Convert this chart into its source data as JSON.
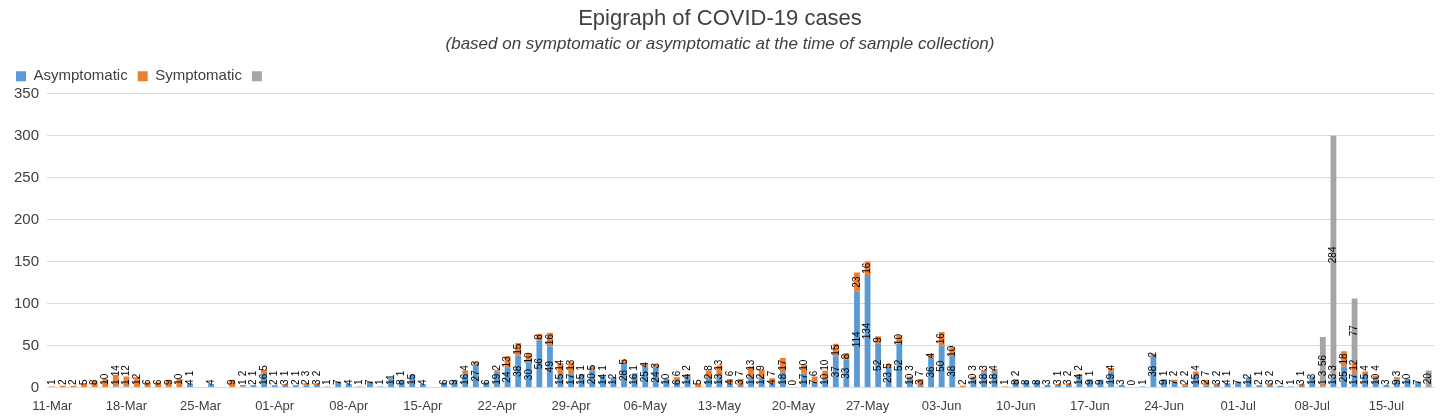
{
  "chart_data": {
    "type": "bar",
    "title": "Epigraph of COVID-19 cases",
    "subtitle": "(based on symptomatic or asymptomatic at the time of sample collection)",
    "categories": [
      "11-Mar",
      null,
      null,
      null,
      null,
      null,
      null,
      "18-Mar",
      null,
      null,
      null,
      null,
      null,
      null,
      "25-Mar",
      null,
      null,
      null,
      null,
      null,
      null,
      "01-Apr",
      null,
      null,
      null,
      null,
      null,
      null,
      "08-Apr",
      null,
      null,
      null,
      null,
      null,
      null,
      "15-Apr",
      null,
      null,
      null,
      null,
      null,
      null,
      "22-Apr",
      null,
      null,
      null,
      null,
      null,
      null,
      "29-Apr",
      null,
      null,
      null,
      null,
      null,
      null,
      "06-May",
      null,
      null,
      null,
      null,
      null,
      null,
      "13-May",
      null,
      null,
      null,
      null,
      null,
      null,
      "20-May",
      null,
      null,
      null,
      null,
      null,
      null,
      "27-May",
      null,
      null,
      null,
      null,
      null,
      null,
      "03-Jun",
      null,
      null,
      null,
      null,
      null,
      null,
      "10-Jun",
      null,
      null,
      null,
      null,
      null,
      null,
      "17-Jun",
      null,
      null,
      null,
      null,
      null,
      null,
      "24-Jun",
      null,
      null,
      null,
      null,
      null,
      null,
      "01-Jul",
      null,
      null,
      null,
      null,
      null,
      null,
      "08-Jul",
      null,
      null,
      null,
      null,
      null,
      null,
      "15-Jul",
      null,
      null,
      null,
      null
    ],
    "series": [
      {
        "name": "Asymptomatic",
        "color": "#5b9bd5",
        "values": [
          null,
          null,
          null,
          null,
          null,
          null,
          1,
          1,
          null,
          null,
          null,
          null,
          null,
          4,
          null,
          4,
          null,
          null,
          1,
          2,
          16,
          2,
          3,
          2,
          2,
          3,
          1,
          7,
          4,
          1,
          7,
          1,
          11,
          8,
          15,
          4,
          null,
          6,
          9,
          16,
          27,
          6,
          19,
          24,
          38,
          30,
          56,
          49,
          15,
          17,
          15,
          20,
          14,
          12,
          28,
          16,
          25,
          24,
          10,
          6,
          14,
          null,
          12,
          13,
          4,
          3,
          12,
          12,
          4,
          18,
          0,
          17,
          7,
          10,
          37,
          33,
          114,
          134,
          52,
          23,
          52,
          10,
          3,
          36,
          50,
          38,
          null,
          10,
          18,
          18,
          null,
          8,
          8,
          8,
          3,
          3,
          3,
          14,
          9,
          9,
          19,
          3,
          0,
          1,
          38,
          9,
          7,
          2,
          15,
          2,
          3,
          4,
          7,
          12,
          2,
          3,
          2,
          1,
          3,
          13,
          1,
          13,
          25,
          17,
          15,
          10,
          3,
          9,
          10,
          7,
          null
        ]
      },
      {
        "name": "Symptomatic",
        "color": "#ed7d31",
        "values": [
          1,
          2,
          2,
          5,
          8,
          10,
          14,
          12,
          12,
          6,
          6,
          9,
          10,
          1,
          null,
          null,
          null,
          9,
          2,
          1,
          5,
          1,
          1,
          1,
          3,
          2,
          null,
          null,
          null,
          null,
          null,
          null,
          null,
          1,
          null,
          null,
          null,
          null,
          null,
          4,
          3,
          null,
          2,
          13,
          15,
          10,
          8,
          16,
          14,
          13,
          1,
          5,
          1,
          null,
          5,
          1,
          4,
          3,
          null,
          6,
          2,
          5,
          8,
          13,
          6,
          7,
          13,
          9,
          7,
          17,
          null,
          10,
          6,
          10,
          15,
          8,
          23,
          16,
          9,
          5,
          10,
          3,
          7,
          4,
          16,
          10,
          2,
          3,
          3,
          4,
          1,
          2,
          null,
          null,
          null,
          1,
          2,
          2,
          1,
          null,
          4,
          null,
          null,
          null,
          2,
          1,
          2,
          2,
          4,
          7,
          2,
          1,
          null,
          null,
          1,
          2,
          null,
          null,
          1,
          null,
          3,
          3,
          18,
          12,
          4,
          4,
          null,
          3,
          null,
          null,
          null
        ]
      },
      {
        "color": "#a5a5a5",
        "values": [
          null,
          null,
          null,
          null,
          null,
          null,
          null,
          null,
          null,
          null,
          null,
          null,
          null,
          null,
          null,
          null,
          null,
          null,
          null,
          null,
          null,
          null,
          null,
          null,
          null,
          null,
          null,
          null,
          null,
          null,
          null,
          null,
          null,
          null,
          null,
          null,
          null,
          null,
          null,
          null,
          null,
          null,
          null,
          null,
          null,
          null,
          null,
          null,
          null,
          null,
          null,
          null,
          null,
          null,
          null,
          null,
          null,
          null,
          null,
          null,
          null,
          null,
          null,
          null,
          null,
          null,
          null,
          null,
          null,
          null,
          null,
          null,
          null,
          null,
          null,
          null,
          null,
          null,
          null,
          null,
          null,
          null,
          null,
          null,
          null,
          null,
          null,
          null,
          null,
          null,
          null,
          null,
          null,
          null,
          null,
          null,
          null,
          null,
          null,
          null,
          null,
          null,
          null,
          null,
          null,
          null,
          null,
          null,
          null,
          null,
          null,
          null,
          null,
          null,
          null,
          null,
          null,
          null,
          null,
          null,
          56,
          284,
          null,
          77,
          null,
          null,
          null,
          null,
          null,
          null,
          20
        ]
      }
    ],
    "stacked": true,
    "ylim": [
      0,
      350
    ],
    "yticks": [
      0,
      50,
      100,
      150,
      200,
      250,
      300,
      350
    ],
    "grid": "y",
    "legend": "top left",
    "data_labels": true
  }
}
